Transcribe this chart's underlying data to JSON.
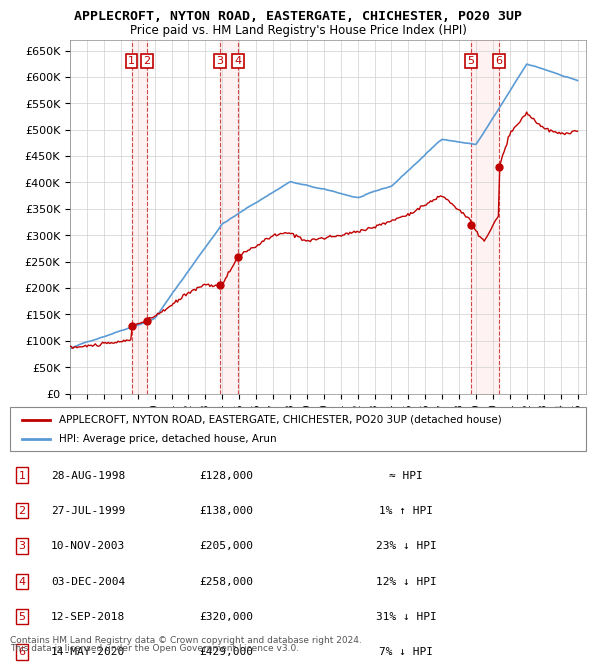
{
  "title": "APPLECROFT, NYTON ROAD, EASTERGATE, CHICHESTER, PO20 3UP",
  "subtitle": "Price paid vs. HM Land Registry's House Price Index (HPI)",
  "xlabel": "",
  "ylabel": "",
  "ylim": [
    0,
    670000
  ],
  "yticks": [
    0,
    50000,
    100000,
    150000,
    200000,
    250000,
    300000,
    350000,
    400000,
    450000,
    500000,
    550000,
    600000,
    650000
  ],
  "ytick_labels": [
    "£0",
    "£50K",
    "£100K",
    "£150K",
    "£200K",
    "£250K",
    "£300K",
    "£350K",
    "£400K",
    "£450K",
    "£500K",
    "£550K",
    "£600K",
    "£650K"
  ],
  "hpi_color": "#5b9bd5",
  "price_color": "#c00000",
  "sale_marker_color": "#c00000",
  "background_color": "#ffffff",
  "grid_color": "#d0d0d0",
  "legend_label_price": "APPLECROFT, NYTON ROAD, EASTERGATE, CHICHESTER, PO20 3UP (detached house)",
  "legend_label_hpi": "HPI: Average price, detached house, Arun",
  "sales": [
    {
      "num": 1,
      "date": "28-AUG-1998",
      "price": 128000,
      "year": 1998.65,
      "note": "≈ HPI"
    },
    {
      "num": 2,
      "date": "27-JUL-1999",
      "price": 138000,
      "year": 1999.56,
      "note": "1% ↑ HPI"
    },
    {
      "num": 3,
      "date": "10-NOV-2003",
      "price": 205000,
      "year": 2003.86,
      "note": "23% ↓ HPI"
    },
    {
      "num": 4,
      "date": "03-DEC-2004",
      "price": 258000,
      "year": 2004.92,
      "note": "12% ↓ HPI"
    },
    {
      "num": 5,
      "date": "12-SEP-2018",
      "price": 320000,
      "year": 2018.7,
      "note": "31% ↓ HPI"
    },
    {
      "num": 6,
      "date": "14-MAY-2020",
      "price": 429000,
      "year": 2020.37,
      "note": "7% ↓ HPI"
    }
  ],
  "footer_line1": "Contains HM Land Registry data © Crown copyright and database right 2024.",
  "footer_line2": "This data is licensed under the Open Government Licence v3.0.",
  "box_color": "#c00000",
  "dashed_color": "#c00000"
}
